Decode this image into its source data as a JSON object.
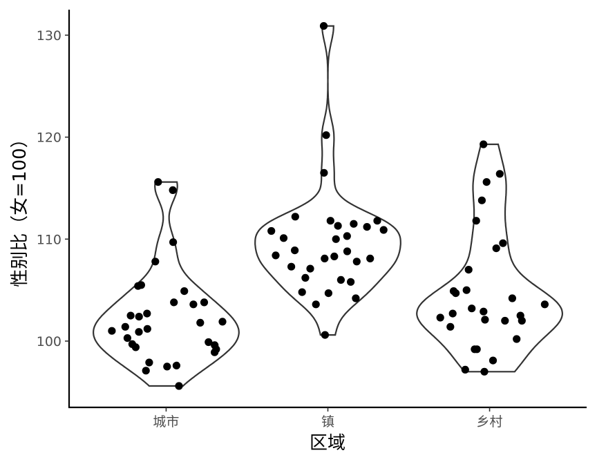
{
  "chart_data": {
    "type": "violin",
    "title": "",
    "xlabel": "区域",
    "ylabel": "性别比（女=100）",
    "categories": [
      "城市",
      "镇",
      "乡村"
    ],
    "ylim": [
      93.5,
      132.5
    ],
    "yticks": [
      100,
      110,
      120,
      130
    ],
    "grid": false,
    "series": [
      {
        "category": "城市",
        "values": [
          115.6,
          114.8,
          109.7,
          107.8,
          105.4,
          105.5,
          104.9,
          103.8,
          103.8,
          103.6,
          102.7,
          102.5,
          102.4,
          101.8,
          101.9,
          101.4,
          101.2,
          101.0,
          100.9,
          100.3,
          99.9,
          99.7,
          99.6,
          99.4,
          99.2,
          98.9,
          97.9,
          97.6,
          97.5,
          97.1,
          95.6
        ]
      },
      {
        "category": "镇",
        "values": [
          130.9,
          120.2,
          116.5,
          112.2,
          111.8,
          111.8,
          111.5,
          111.2,
          111.3,
          110.9,
          110.8,
          110.3,
          110.1,
          110.0,
          108.9,
          108.8,
          108.4,
          108.3,
          108.1,
          108.1,
          107.8,
          107.3,
          107.1,
          106.2,
          106.0,
          105.8,
          104.8,
          104.7,
          104.2,
          103.6,
          100.6
        ]
      },
      {
        "category": "乡村",
        "values": [
          119.3,
          116.4,
          115.6,
          113.8,
          111.8,
          109.6,
          109.1,
          107.0,
          105.0,
          104.7,
          104.2,
          104.9,
          103.6,
          103.2,
          102.9,
          102.7,
          102.5,
          102.3,
          102.1,
          102.0,
          102.0,
          101.4,
          100.2,
          99.2,
          99.2,
          98.1,
          97.2,
          97.0
        ]
      }
    ]
  }
}
